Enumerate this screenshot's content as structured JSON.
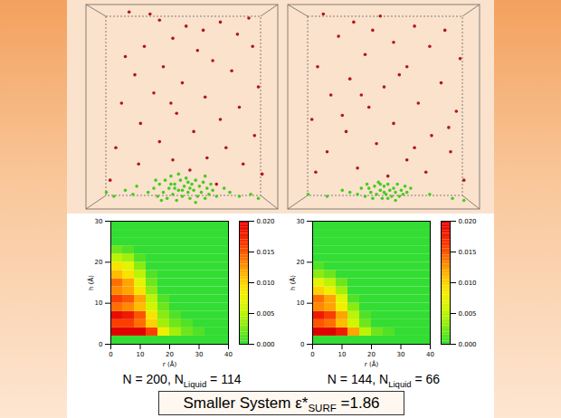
{
  "chart_data": [
    {
      "type": "scatter",
      "tick_labels": false,
      "xlim": [
        0,
        100
      ],
      "ylim": [
        0,
        100
      ],
      "series": [
        {
          "color": "#b01818",
          "points": [
            [
              22,
              97
            ],
            [
              38,
              93
            ],
            [
              52,
              90
            ],
            [
              61,
              88
            ],
            [
              70,
              92
            ],
            [
              79,
              86
            ],
            [
              45,
              84
            ],
            [
              30,
              80
            ],
            [
              58,
              78
            ],
            [
              87,
              80
            ],
            [
              66,
              73
            ],
            [
              40,
              70
            ],
            [
              25,
              66
            ],
            [
              76,
              68
            ],
            [
              50,
              62
            ],
            [
              90,
              60
            ],
            [
              35,
              57
            ],
            [
              62,
              55
            ],
            [
              18,
              52
            ],
            [
              80,
              50
            ],
            [
              47,
              47
            ],
            [
              70,
              44
            ],
            [
              28,
              42
            ],
            [
              56,
              38
            ],
            [
              88,
              36
            ],
            [
              38,
              33
            ],
            [
              73,
              30
            ],
            [
              15,
              30
            ],
            [
              63,
              25
            ],
            [
              45,
              24
            ],
            [
              82,
              22
            ],
            [
              27,
              22
            ],
            [
              54,
              19
            ],
            [
              92,
              17
            ],
            [
              12,
              14
            ],
            [
              68,
              12
            ],
            [
              33,
              96
            ],
            [
              85,
              94
            ],
            [
              20,
              75
            ],
            [
              44,
              52
            ]
          ]
        },
        {
          "color": "#44cc22",
          "points": [
            [
              32,
              8
            ],
            [
              35,
              10
            ],
            [
              37,
              6
            ],
            [
              38,
              12
            ],
            [
              40,
              8
            ],
            [
              41,
              14
            ],
            [
              42,
              5
            ],
            [
              43,
              10
            ],
            [
              44,
              16
            ],
            [
              45,
              7
            ],
            [
              46,
              12
            ],
            [
              47,
              4
            ],
            [
              48,
              9
            ],
            [
              49,
              14
            ],
            [
              50,
              6
            ],
            [
              51,
              11
            ],
            [
              52,
              15
            ],
            [
              53,
              8
            ],
            [
              54,
              5
            ],
            [
              55,
              12
            ],
            [
              56,
              9
            ],
            [
              57,
              14
            ],
            [
              58,
              6
            ],
            [
              59,
              11
            ],
            [
              60,
              8
            ],
            [
              61,
              13
            ],
            [
              62,
              5
            ],
            [
              63,
              10
            ],
            [
              64,
              7
            ],
            [
              65,
              12
            ],
            [
              66,
              9
            ],
            [
              68,
              6
            ],
            [
              36,
              14
            ],
            [
              39,
              4
            ],
            [
              44,
              12
            ],
            [
              48,
              17
            ],
            [
              53,
              13
            ],
            [
              57,
              3
            ],
            [
              62,
              16
            ],
            [
              50,
              9
            ],
            [
              46,
              10
            ],
            [
              54,
              10
            ],
            [
              10,
              8
            ],
            [
              14,
              6
            ],
            [
              20,
              9
            ],
            [
              24,
              7
            ],
            [
              75,
              8
            ],
            [
              80,
              6
            ],
            [
              86,
              7
            ],
            [
              90,
              5
            ],
            [
              26,
              11
            ],
            [
              72,
              10
            ]
          ]
        }
      ]
    },
    {
      "type": "scatter",
      "tick_labels": false,
      "xlim": [
        0,
        100
      ],
      "ylim": [
        0,
        100
      ],
      "series": [
        {
          "color": "#b01818",
          "points": [
            [
              18,
              96
            ],
            [
              34,
              92
            ],
            [
              48,
              95
            ],
            [
              66,
              90
            ],
            [
              82,
              88
            ],
            [
              26,
              85
            ],
            [
              55,
              82
            ],
            [
              74,
              80
            ],
            [
              40,
              76
            ],
            [
              90,
              74
            ],
            [
              15,
              70
            ],
            [
              62,
              70
            ],
            [
              32,
              64
            ],
            [
              50,
              60
            ],
            [
              80,
              62
            ],
            [
              22,
              56
            ],
            [
              68,
              52
            ],
            [
              42,
              50
            ],
            [
              88,
              48
            ],
            [
              12,
              44
            ],
            [
              55,
              42
            ],
            [
              30,
              38
            ],
            [
              75,
              36
            ],
            [
              46,
              32
            ],
            [
              85,
              28
            ],
            [
              20,
              28
            ],
            [
              62,
              24
            ],
            [
              36,
              20
            ],
            [
              72,
              18
            ],
            [
              52,
              16
            ],
            [
              92,
              14
            ],
            [
              14,
              18
            ],
            [
              44,
              88
            ],
            [
              58,
              66
            ],
            [
              84,
              40
            ],
            [
              28,
              46
            ],
            [
              66,
              30
            ],
            [
              38,
              56
            ]
          ]
        },
        {
          "color": "#44cc22",
          "points": [
            [
              36,
              7
            ],
            [
              38,
              10
            ],
            [
              40,
              6
            ],
            [
              41,
              12
            ],
            [
              43,
              8
            ],
            [
              44,
              5
            ],
            [
              45,
              11
            ],
            [
              46,
              7
            ],
            [
              47,
              13
            ],
            [
              48,
              9
            ],
            [
              49,
              5
            ],
            [
              50,
              11
            ],
            [
              51,
              7
            ],
            [
              52,
              12
            ],
            [
              53,
              9
            ],
            [
              54,
              6
            ],
            [
              55,
              10
            ],
            [
              56,
              8
            ],
            [
              57,
              12
            ],
            [
              58,
              6
            ],
            [
              59,
              9
            ],
            [
              60,
              7
            ],
            [
              61,
              11
            ],
            [
              42,
              10
            ],
            [
              48,
              12
            ],
            [
              52,
              5
            ],
            [
              56,
              4
            ],
            [
              50,
              8
            ],
            [
              62,
              8
            ],
            [
              64,
              10
            ],
            [
              20,
              6
            ],
            [
              28,
              9
            ],
            [
              74,
              7
            ],
            [
              86,
              5
            ],
            [
              92,
              4
            ],
            [
              10,
              7
            ],
            [
              32,
              8
            ]
          ]
        }
      ]
    },
    {
      "type": "heatmap",
      "x_label": "r (Å)",
      "y_label": "h (Å)",
      "xlim": [
        0,
        40
      ],
      "ylim": [
        0,
        30
      ],
      "xticks": [
        0,
        10,
        20,
        30,
        40
      ],
      "yticks": [
        0,
        10,
        20,
        30
      ],
      "x_bins": [
        0,
        4,
        8,
        12,
        16,
        20,
        24,
        28,
        32,
        36,
        40
      ],
      "y_bins": [
        0,
        2,
        4,
        6,
        8,
        10,
        12,
        14,
        16,
        18,
        20,
        22,
        24,
        26,
        28,
        30
      ],
      "cells": [
        [
          0,
          0,
          0,
          0,
          0,
          0,
          0,
          0,
          0,
          0
        ],
        [
          0.02,
          0.02,
          0.02,
          0.016,
          0.008,
          0.004,
          0.002,
          0.001,
          0,
          0
        ],
        [
          0.016,
          0.016,
          0.014,
          0.01,
          0.004,
          0.002,
          0.001,
          0,
          0,
          0
        ],
        [
          0.019,
          0.018,
          0.015,
          0.009,
          0.003,
          0.001,
          0,
          0,
          0,
          0
        ],
        [
          0.014,
          0.013,
          0.011,
          0.006,
          0.002,
          0,
          0,
          0,
          0,
          0
        ],
        [
          0.016,
          0.015,
          0.012,
          0.005,
          0.001,
          0,
          0,
          0,
          0,
          0
        ],
        [
          0.013,
          0.012,
          0.009,
          0.003,
          0,
          0,
          0,
          0,
          0,
          0
        ],
        [
          0.014,
          0.012,
          0.007,
          0.002,
          0,
          0,
          0,
          0,
          0,
          0
        ],
        [
          0.011,
          0.009,
          0.005,
          0.001,
          0,
          0,
          0,
          0,
          0,
          0
        ],
        [
          0.009,
          0.007,
          0.003,
          0,
          0,
          0,
          0,
          0,
          0,
          0
        ],
        [
          0.005,
          0.004,
          0.001,
          0,
          0,
          0,
          0,
          0,
          0,
          0
        ],
        [
          0.002,
          0.001,
          0,
          0,
          0,
          0,
          0,
          0,
          0,
          0
        ],
        [
          0,
          0,
          0,
          0,
          0,
          0,
          0,
          0,
          0,
          0
        ],
        [
          0,
          0,
          0,
          0,
          0,
          0,
          0,
          0,
          0,
          0
        ],
        [
          0,
          0,
          0,
          0,
          0,
          0,
          0,
          0,
          0,
          0
        ]
      ],
      "colorbar": {
        "range": [
          0,
          0.02
        ],
        "ticks": [
          {
            "value": 0,
            "label": "0.000"
          },
          {
            "value": 0.005,
            "label": "0.005"
          },
          {
            "value": 0.01,
            "label": "0.010"
          },
          {
            "value": 0.015,
            "label": "0.015"
          },
          {
            "value": 0.02,
            "label": "0.020"
          }
        ]
      }
    },
    {
      "type": "heatmap",
      "x_label": "r (Å)",
      "y_label": "h (Å)",
      "xlim": [
        0,
        40
      ],
      "ylim": [
        0,
        30
      ],
      "xticks": [
        0,
        10,
        20,
        30,
        40
      ],
      "yticks": [
        0,
        10,
        20,
        30
      ],
      "x_bins": [
        0,
        4,
        8,
        12,
        16,
        20,
        24,
        28,
        32,
        36,
        40
      ],
      "y_bins": [
        0,
        2,
        4,
        6,
        8,
        10,
        12,
        14,
        16,
        18,
        20,
        22,
        24,
        26,
        28,
        30
      ],
      "cells": [
        [
          0,
          0,
          0,
          0,
          0,
          0,
          0,
          0,
          0,
          0
        ],
        [
          0.02,
          0.02,
          0.018,
          0.012,
          0.005,
          0.002,
          0.001,
          0,
          0,
          0
        ],
        [
          0.015,
          0.014,
          0.011,
          0.006,
          0.002,
          0,
          0,
          0,
          0,
          0
        ],
        [
          0.018,
          0.016,
          0.012,
          0.005,
          0.001,
          0,
          0,
          0,
          0,
          0
        ],
        [
          0.013,
          0.012,
          0.008,
          0.003,
          0,
          0,
          0,
          0,
          0,
          0
        ],
        [
          0.014,
          0.012,
          0.007,
          0.001,
          0,
          0,
          0,
          0,
          0,
          0
        ],
        [
          0.01,
          0.008,
          0.004,
          0,
          0,
          0,
          0,
          0,
          0,
          0
        ],
        [
          0.007,
          0.005,
          0.002,
          0,
          0,
          0,
          0,
          0,
          0,
          0
        ],
        [
          0.003,
          0.002,
          0,
          0,
          0,
          0,
          0,
          0,
          0,
          0
        ],
        [
          0.001,
          0,
          0,
          0,
          0,
          0,
          0,
          0,
          0,
          0
        ],
        [
          0,
          0,
          0,
          0,
          0,
          0,
          0,
          0,
          0,
          0
        ],
        [
          0,
          0,
          0,
          0,
          0,
          0,
          0,
          0,
          0,
          0
        ],
        [
          0,
          0,
          0,
          0,
          0,
          0,
          0,
          0,
          0,
          0
        ],
        [
          0,
          0,
          0,
          0,
          0,
          0,
          0,
          0,
          0,
          0
        ],
        [
          0,
          0,
          0,
          0,
          0,
          0,
          0,
          0,
          0,
          0
        ]
      ],
      "colorbar": {
        "range": [
          0,
          0.02
        ],
        "ticks": [
          {
            "value": 0,
            "label": "0.000"
          },
          {
            "value": 0.005,
            "label": "0.005"
          },
          {
            "value": 0.01,
            "label": "0.010"
          },
          {
            "value": 0.015,
            "label": "0.015"
          },
          {
            "value": 0.02,
            "label": "0.020"
          }
        ]
      }
    }
  ],
  "panel_labels": [
    [
      {
        "text": "N = 200, N"
      },
      {
        "text": "Liquid",
        "sub": true
      },
      {
        "text": " = 114"
      }
    ],
    [
      {
        "text": "N = 144, N"
      },
      {
        "text": "Liquid",
        "sub": true
      },
      {
        "text": " = 66"
      }
    ]
  ],
  "caption": [
    {
      "text": "Smaller System ε*"
    },
    {
      "text": "SURF",
      "sub": true
    },
    {
      "text": " =1.86"
    }
  ]
}
